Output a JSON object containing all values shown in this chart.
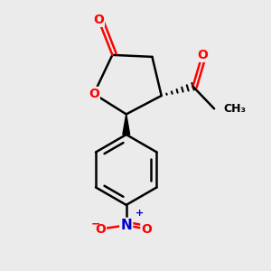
{
  "bg_color": "#ebebeb",
  "bond_color": "#000000",
  "oxygen_color": "#ff0000",
  "nitrogen_color": "#0000cc",
  "line_width": 1.8,
  "font_size_atom": 10,
  "font_size_charge": 7,
  "xlim": [
    -1.2,
    1.4
  ],
  "ylim": [
    -1.6,
    1.3
  ],
  "figsize": [
    3.0,
    3.0
  ],
  "dpi": 100
}
